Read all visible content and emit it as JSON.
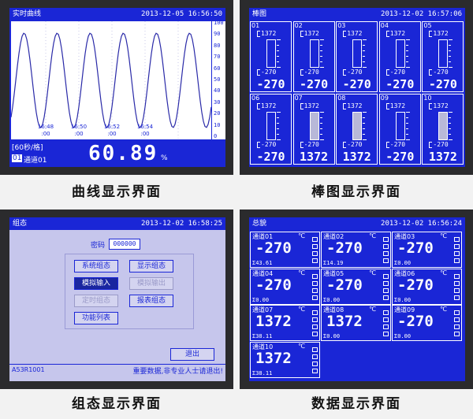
{
  "trend": {
    "caption": "曲线显示界面",
    "title": "实时曲线",
    "datetime": "2013-12-05 16:56:50",
    "scale": [
      100,
      90,
      80,
      70,
      60,
      50,
      40,
      30,
      20,
      10,
      0
    ],
    "time_labels": [
      [
        "16:48",
        ":00"
      ],
      [
        "16:50",
        ":00"
      ],
      [
        "16:52",
        ":00"
      ],
      [
        "16:54",
        ":00"
      ]
    ],
    "interval": "[60秒/格]",
    "channel_no": "01",
    "channel": "通道01",
    "value": 60.89,
    "unit": "%"
  },
  "bars": {
    "caption": "棒图显示界面",
    "title": "棒图",
    "datetime": "2013-12-02 16:57:06",
    "cells": [
      {
        "id": "01",
        "max": 1372,
        "min": -270,
        "value": -270
      },
      {
        "id": "02",
        "max": 1372,
        "min": -270,
        "value": -270
      },
      {
        "id": "03",
        "max": 1372,
        "min": -270,
        "value": -270
      },
      {
        "id": "04",
        "max": 1372,
        "min": -270,
        "value": -270
      },
      {
        "id": "05",
        "max": 1372,
        "min": -270,
        "value": -270
      },
      {
        "id": "06",
        "max": 1372,
        "min": -270,
        "value": -270
      },
      {
        "id": "07",
        "max": 1372,
        "min": -270,
        "value": 1372
      },
      {
        "id": "08",
        "max": 1372,
        "min": -270,
        "value": 1372
      },
      {
        "id": "09",
        "max": 1372,
        "min": -270,
        "value": -270
      },
      {
        "id": "10",
        "max": 1372,
        "min": -270,
        "value": 1372
      }
    ]
  },
  "config": {
    "caption": "组态显示界面",
    "title": "组态",
    "datetime": "2013-12-02 16:58:25",
    "password_label": "密码",
    "password": "000000",
    "buttons": [
      {
        "label": "系统组态",
        "state": "normal"
      },
      {
        "label": "显示组态",
        "state": "normal"
      },
      {
        "label": "模拟输入",
        "state": "selected"
      },
      {
        "label": "模拟输出",
        "state": "disabled"
      },
      {
        "label": "定时组态",
        "state": "disabled"
      },
      {
        "label": "报表组态",
        "state": "normal"
      },
      {
        "label": "功能列表",
        "state": "normal"
      }
    ],
    "exit": "退出",
    "model": "A53R1001",
    "warning": "重要数据,非专业人士请退出!"
  },
  "overview": {
    "caption": "数据显示界面",
    "title": "总貌",
    "datetime": "2013-12-02 16:56:24",
    "cells": [
      {
        "name": "通道01",
        "unit": "℃",
        "value": -270,
        "sum": "Σ43.61"
      },
      {
        "name": "通道02",
        "unit": "℃",
        "value": -270,
        "sum": "Σ14.19"
      },
      {
        "name": "通道03",
        "unit": "℃",
        "value": -270,
        "sum": "Σ0.00"
      },
      {
        "name": "通道04",
        "unit": "℃",
        "value": -270,
        "sum": "Σ0.00"
      },
      {
        "name": "通道05",
        "unit": "℃",
        "value": -270,
        "sum": "Σ0.00"
      },
      {
        "name": "通道06",
        "unit": "℃",
        "value": -270,
        "sum": "Σ0.00"
      },
      {
        "name": "通道07",
        "unit": "℃",
        "value": 1372,
        "sum": "Σ38.11"
      },
      {
        "name": "通道08",
        "unit": "℃",
        "value": 1372,
        "sum": "Σ0.00"
      },
      {
        "name": "通道09",
        "unit": "℃",
        "value": -270,
        "sum": "Σ0.00"
      },
      {
        "name": "通道10",
        "unit": "℃",
        "value": 1372,
        "sum": "Σ38.11"
      }
    ]
  }
}
